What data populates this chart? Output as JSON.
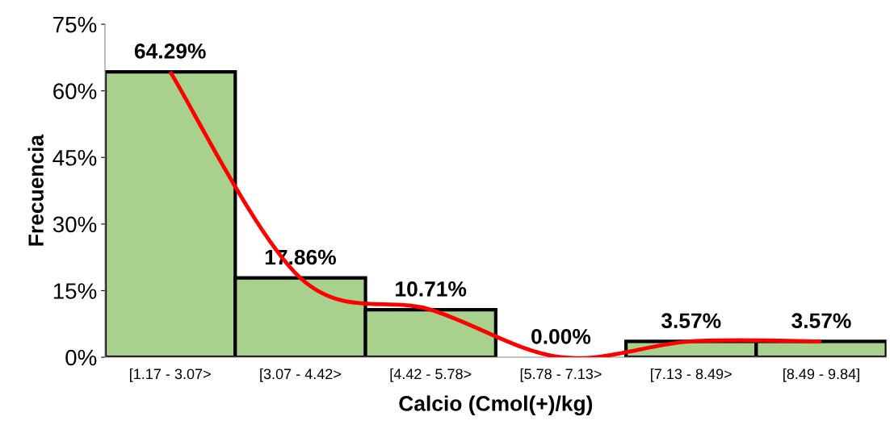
{
  "chart_data": {
    "type": "bar",
    "xlabel": "Calcio (Cmol(+)/kg)",
    "ylabel": "Frecuencia",
    "categories": [
      "[1.17 - 3.07>",
      "[3.07 - 4.42>",
      "[4.42 - 5.78>",
      "[5.78 - 7.13>",
      "[7.13 - 8.49>",
      "[8.49 - 9.84]"
    ],
    "series": [
      {
        "color": "#a9d18e",
        "values": [
          64.29,
          17.86,
          10.71,
          0.0,
          3.57,
          3.57
        ],
        "value_labels": [
          "64.29%",
          "17.86%",
          "10.71%",
          "0.00%",
          "3.57%",
          "3.57%"
        ]
      },
      {
        "type": "line",
        "color": "#ff0000",
        "values": [
          64.29,
          17.86,
          10.71,
          0.0,
          3.57,
          3.57
        ]
      }
    ],
    "ylim": [
      0,
      75
    ],
    "yticks": [
      {
        "value": 0,
        "label": "0%"
      },
      {
        "value": 15,
        "label": "15%"
      },
      {
        "value": 30,
        "label": "30%"
      },
      {
        "value": 45,
        "label": "45%"
      },
      {
        "value": 60,
        "label": "60%"
      },
      {
        "value": 75,
        "label": "75%"
      }
    ],
    "grid": false
  }
}
